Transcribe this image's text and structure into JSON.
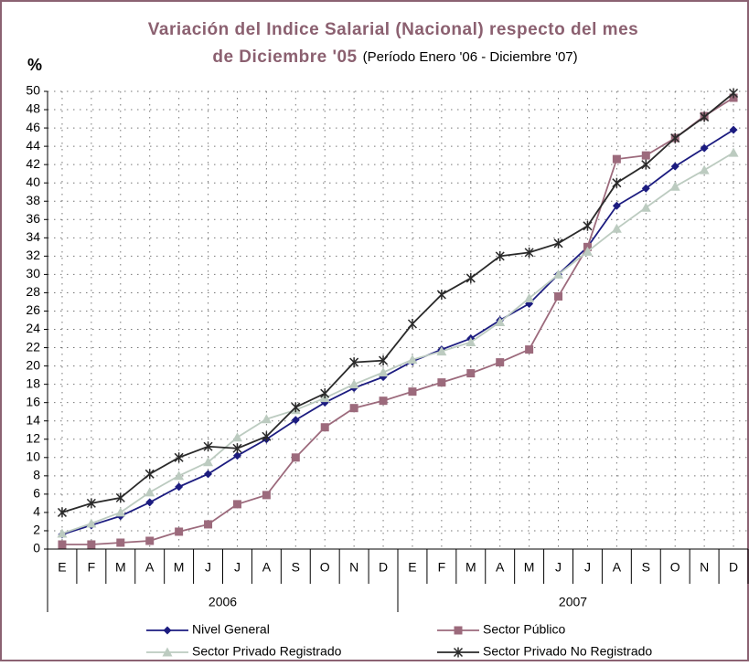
{
  "chart_data": {
    "type": "line",
    "title": "Variación del Indice Salarial (Nacional) respecto del mes",
    "title_line2": "de Diciembre '05",
    "subtitle": "(Período Enero '06 - Diciembre '07)",
    "y_label": "%",
    "categories": [
      "E",
      "F",
      "M",
      "A",
      "M",
      "J",
      "J",
      "A",
      "S",
      "O",
      "N",
      "D",
      "E",
      "F",
      "M",
      "A",
      "M",
      "J",
      "J",
      "A",
      "S",
      "O",
      "N",
      "D"
    ],
    "groups": [
      "2006",
      "2007"
    ],
    "ylim": [
      0,
      50
    ],
    "yticks": [
      0,
      2,
      4,
      6,
      8,
      10,
      12,
      14,
      16,
      18,
      20,
      22,
      24,
      26,
      28,
      30,
      32,
      34,
      36,
      38,
      40,
      42,
      44,
      46,
      48,
      50
    ],
    "grid": true,
    "legend": "bottom",
    "series": [
      {
        "name": "Nivel General",
        "color": "#1c1c80",
        "marker": "diamond",
        "values": [
          1.6,
          2.6,
          3.6,
          5.1,
          6.8,
          8.2,
          10.2,
          12.0,
          14.1,
          16.0,
          17.6,
          18.8,
          20.5,
          21.8,
          23.0,
          25.0,
          26.8,
          30.0,
          33.0,
          37.5,
          39.4,
          41.8,
          43.8,
          45.8
        ]
      },
      {
        "name": "Sector Público",
        "color": "#9c6a7c",
        "marker": "square",
        "values": [
          0.5,
          0.5,
          0.7,
          0.9,
          1.9,
          2.7,
          4.9,
          5.9,
          10.0,
          13.3,
          15.4,
          16.2,
          17.2,
          18.2,
          19.2,
          20.4,
          21.8,
          27.6,
          33.0,
          42.6,
          43.0,
          44.9,
          47.3,
          49.3
        ]
      },
      {
        "name": "Sector Privado Registrado",
        "color": "#bccbc0",
        "marker": "triangle",
        "values": [
          1.7,
          2.8,
          4.0,
          6.2,
          8.0,
          9.5,
          12.2,
          14.2,
          15.2,
          16.5,
          18.0,
          19.3,
          20.7,
          21.6,
          22.6,
          24.8,
          27.4,
          30.0,
          32.5,
          35.0,
          37.3,
          39.6,
          41.4,
          43.3
        ]
      },
      {
        "name": "Sector Privado No Registrado",
        "color": "#2a2a2a",
        "marker": "star",
        "values": [
          4.0,
          5.0,
          5.6,
          8.2,
          10.0,
          11.2,
          11.0,
          12.3,
          15.5,
          17.0,
          20.4,
          20.6,
          24.6,
          27.8,
          29.6,
          32.0,
          32.4,
          33.4,
          35.3,
          40.0,
          42.0,
          44.9,
          47.2,
          49.8
        ]
      }
    ]
  }
}
